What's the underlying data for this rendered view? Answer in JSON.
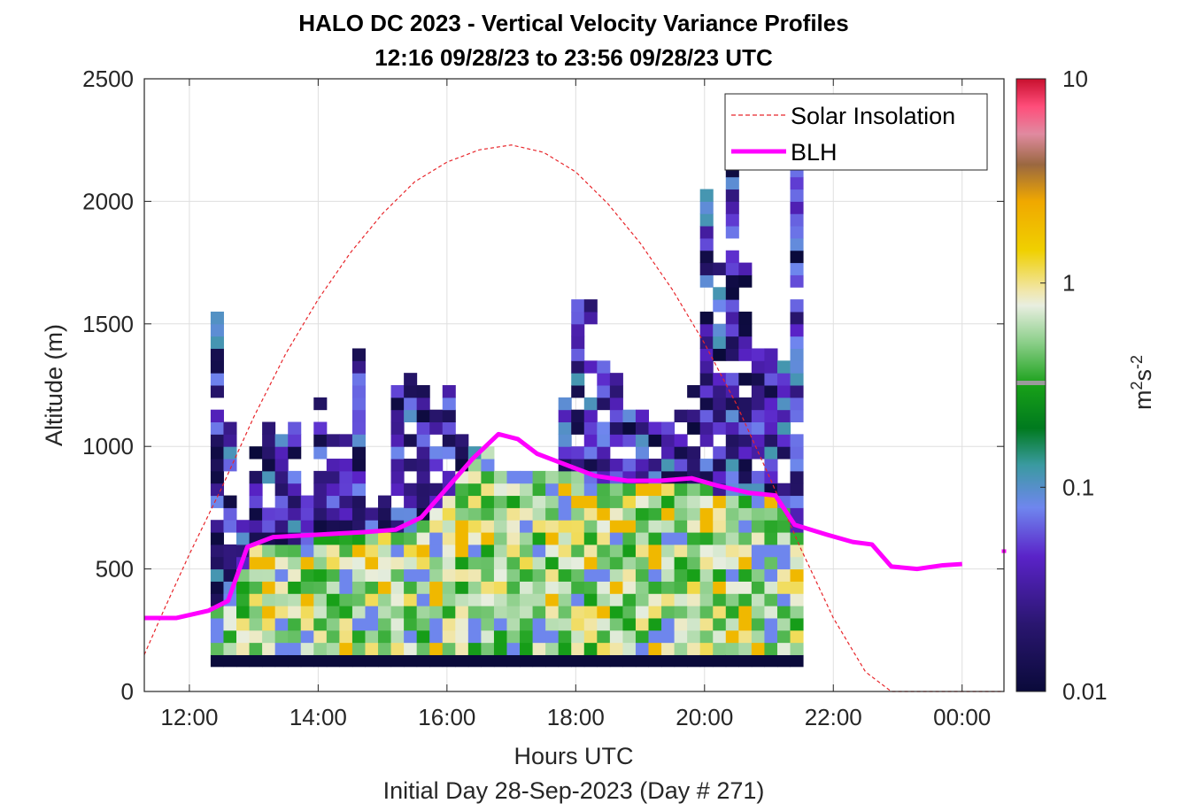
{
  "chart_data": {
    "type": "heatmap",
    "title": "HALO DC 2023 - Vertical Velocity Variance Profiles",
    "subtitle": "12:16 09/28/23 to 23:56 09/28/23  UTC",
    "xlabel": "Hours UTC",
    "ylabel": "Altitude (m)",
    "footer": "Initial Day 28-Sep-2023 (Day # 271)",
    "xlim": [
      11.3,
      24.65
    ],
    "ylim": [
      0,
      2500
    ],
    "x_ticks": [
      12,
      14,
      16,
      18,
      20,
      22,
      24
    ],
    "x_tick_labels": [
      "12:00",
      "14:00",
      "16:00",
      "18:00",
      "20:00",
      "22:00",
      "00:00"
    ],
    "y_ticks": [
      0,
      500,
      1000,
      1500,
      2000,
      2500
    ],
    "y_tick_labels": [
      "0",
      "500",
      "1000",
      "1500",
      "2000",
      "2500"
    ],
    "grid": true,
    "legend_position": "top-right",
    "legend": [
      {
        "label": "Solar Insolation",
        "style": "dashed",
        "color": "#e8262b"
      },
      {
        "label": "BLH",
        "style": "solid",
        "color": "#ff00ff"
      }
    ],
    "colorbar": {
      "scale": "log",
      "range": [
        0.01,
        10
      ],
      "ticks": [
        0.01,
        0.1,
        1,
        10
      ],
      "tick_labels": [
        "0.01",
        "0.1",
        "1",
        "10"
      ],
      "label_main": "m",
      "label_sup1": "2",
      "label_mid": "s",
      "label_sup2": "-2"
    },
    "heatmap": {
      "time_start": 12.33,
      "column_width_h": 0.2,
      "bin_height_m": 50,
      "bottom_row_m": [
        100,
        150
      ],
      "bottom_row_value": 0.01,
      "profile_tops_m": [
        1550,
        1100,
        700,
        1000,
        1100,
        1050,
        1100,
        800,
        1200,
        1050,
        1050,
        1400,
        800,
        800,
        1250,
        1300,
        1250,
        1200,
        1250,
        1150,
        1000,
        1000,
        900,
        900,
        900,
        900,
        900,
        1250,
        1600,
        1600,
        1400,
        1300,
        1150,
        1150,
        1100,
        1100,
        1150,
        1250,
        2050,
        1750,
        2150,
        1750,
        1400,
        1400,
        1350,
        2150
      ],
      "boundary_layer_value_range": [
        0.3,
        1.2
      ],
      "upper_value_range": [
        0.01,
        0.12
      ]
    },
    "series": [
      {
        "name": "BLH",
        "x": [
          11.3,
          11.8,
          12.3,
          12.6,
          12.9,
          13.3,
          14.0,
          14.7,
          15.2,
          15.6,
          16.0,
          16.4,
          16.8,
          17.1,
          17.4,
          17.8,
          18.3,
          18.8,
          19.3,
          19.8,
          20.2,
          20.7,
          21.1,
          21.4,
          21.9,
          22.3,
          22.6,
          22.9,
          23.3,
          23.7,
          24.0
        ],
        "y": [
          300,
          300,
          330,
          370,
          590,
          630,
          640,
          650,
          660,
          710,
          830,
          950,
          1050,
          1030,
          970,
          930,
          880,
          860,
          860,
          870,
          840,
          810,
          800,
          680,
          640,
          610,
          600,
          510,
          500,
          515,
          520
        ],
        "extra_segment_x": [
          24.65,
          24.85
        ],
        "extra_segment_y": [
          565,
          580
        ]
      },
      {
        "name": "Solar Insolation",
        "x": [
          11.3,
          11.6,
          12.0,
          12.5,
          13.0,
          13.5,
          14.0,
          14.5,
          15.0,
          15.5,
          16.0,
          16.5,
          17.0,
          17.5,
          18.0,
          18.5,
          19.0,
          19.5,
          20.0,
          20.5,
          21.0,
          21.5,
          22.0,
          22.5,
          22.9,
          23.1,
          24.65
        ],
        "y": [
          150,
          330,
          560,
          830,
          1120,
          1380,
          1600,
          1790,
          1950,
          2080,
          2160,
          2210,
          2230,
          2200,
          2120,
          1990,
          1830,
          1640,
          1420,
          1170,
          880,
          580,
          300,
          80,
          0,
          0,
          0
        ]
      }
    ]
  }
}
